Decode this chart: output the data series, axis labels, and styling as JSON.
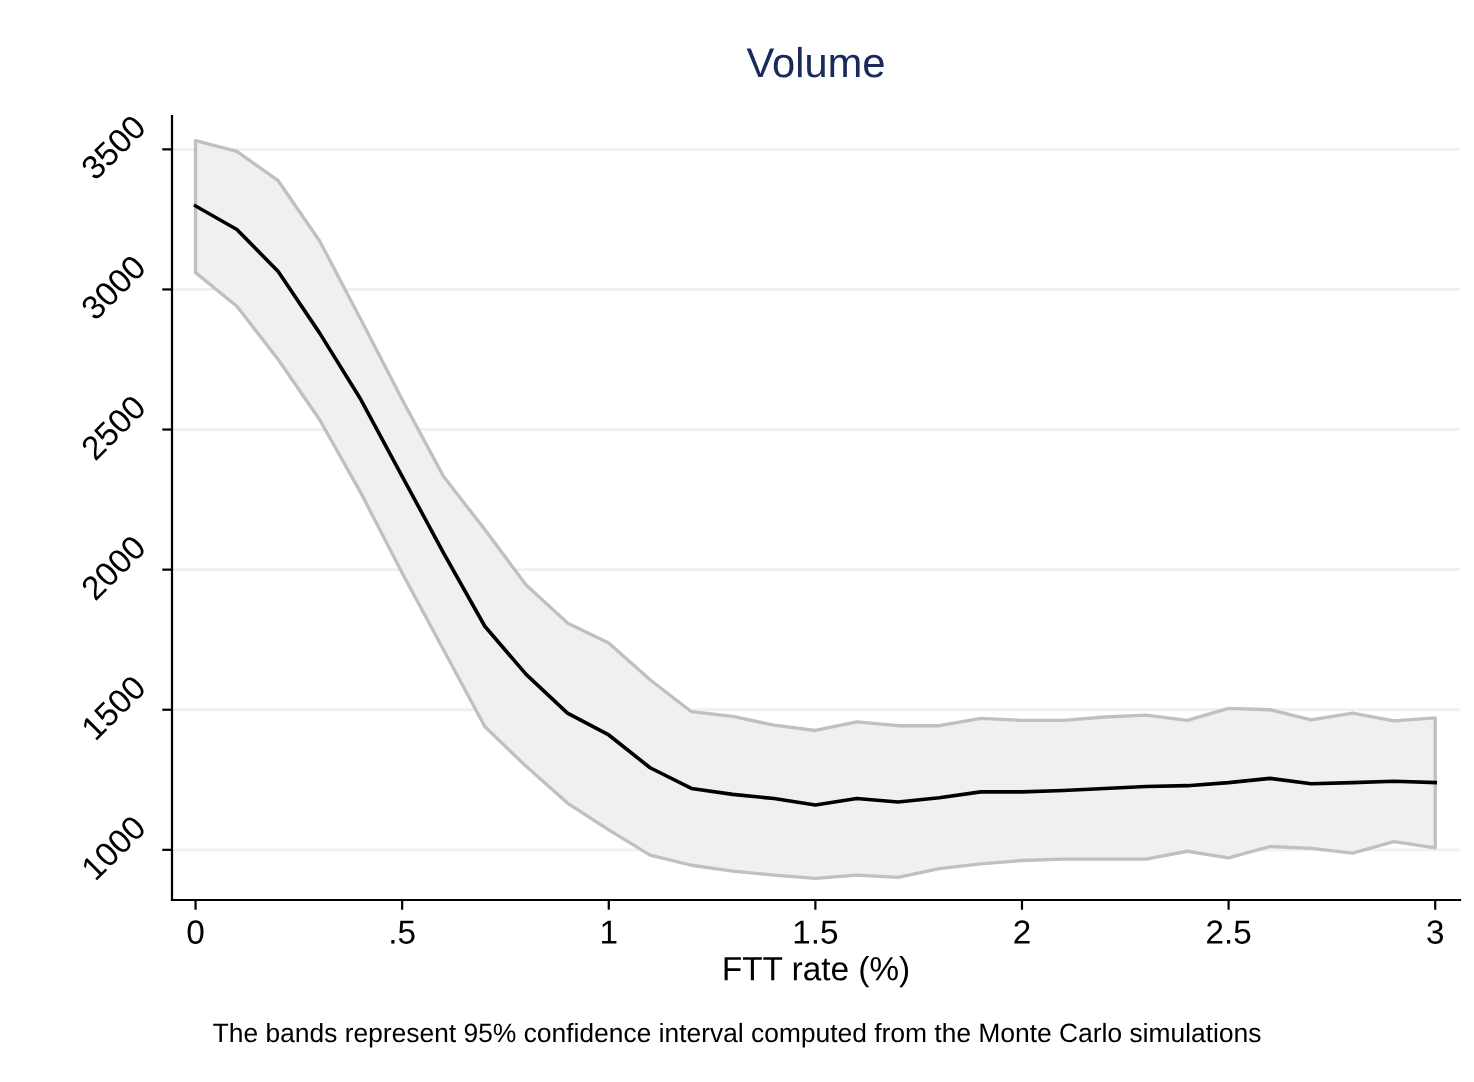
{
  "chart_data": {
    "type": "line",
    "title": "Volume",
    "xlabel": "FTT rate (%)",
    "annotations": [
      "The bands represent 95% confidence interval computed from the Monte Carlo simulations"
    ],
    "x": [
      0,
      0.1,
      0.2,
      0.3,
      0.4,
      0.5,
      0.6,
      0.7,
      0.8,
      0.9,
      1.0,
      1.1,
      1.2,
      1.3,
      1.4,
      1.5,
      1.6,
      1.7,
      1.8,
      1.9,
      2.0,
      2.1,
      2.2,
      2.3,
      2.4,
      2.5,
      2.6,
      2.7,
      2.8,
      2.9,
      3.0
    ],
    "series": [
      {
        "color": "#000000",
        "values": [
          3298,
          3214,
          3064,
          2845,
          2607,
          2333,
          2060,
          1798,
          1626,
          1488,
          1410,
          1293,
          1219,
          1198,
          1183,
          1160,
          1183,
          1171,
          1186,
          1207,
          1207,
          1212,
          1219,
          1226,
          1229,
          1240,
          1255,
          1236,
          1240,
          1245,
          1240
        ],
        "upper": [
          3531,
          3493,
          3388,
          3174,
          2893,
          2607,
          2333,
          2143,
          1945,
          1810,
          1738,
          1607,
          1493,
          1476,
          1445,
          1426,
          1457,
          1443,
          1443,
          1469,
          1462,
          1462,
          1474,
          1481,
          1462,
          1505,
          1500,
          1464,
          1488,
          1460,
          1471
        ],
        "lower": [
          3060,
          2940,
          2750,
          2536,
          2274,
          1988,
          1714,
          1440,
          1298,
          1167,
          1071,
          981,
          945,
          924,
          910,
          898,
          910,
          902,
          933,
          950,
          962,
          967,
          967,
          967,
          995,
          971,
          1012,
          1005,
          988,
          1029,
          1007
        ]
      }
    ],
    "xlim": [
      -0.057,
      3.06
    ],
    "ylim": [
      821,
      3619
    ],
    "xticks": [
      0,
      {
        "value": 0.5,
        "label": ".5"
      },
      1,
      1.5,
      2,
      2.5,
      3
    ],
    "yticks": [
      1000,
      1500,
      2000,
      2500,
      3000,
      3500
    ],
    "grid": "y",
    "legend": false,
    "marker": "none",
    "line_style": "solid"
  }
}
